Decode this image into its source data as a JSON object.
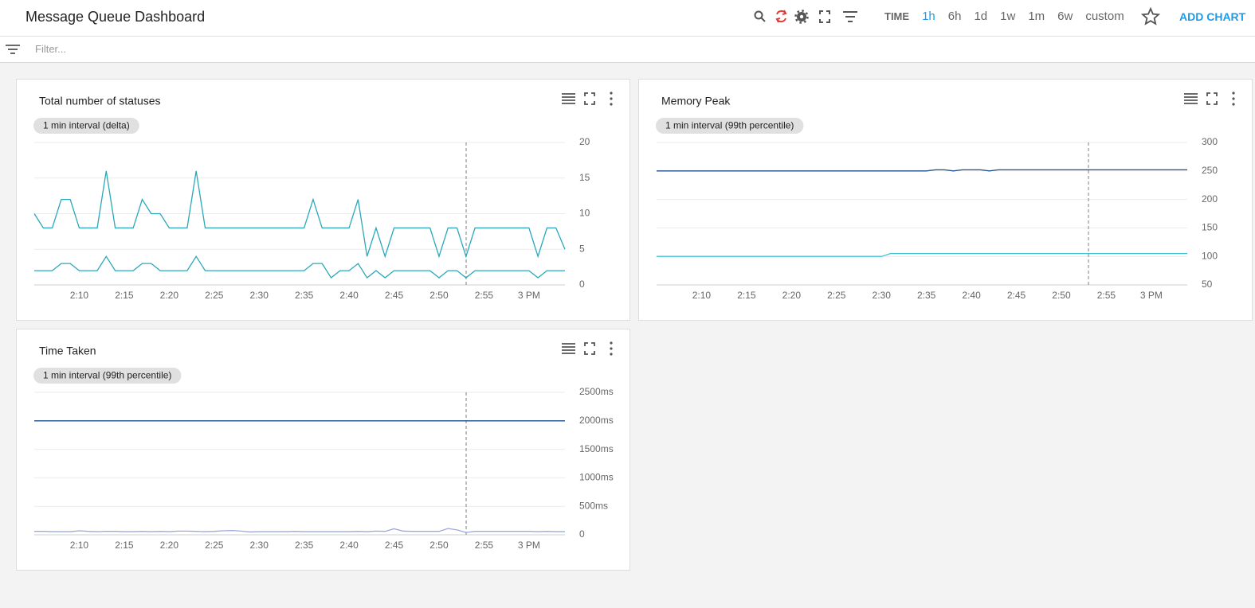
{
  "header": {
    "title": "Message Queue Dashboard",
    "time_label": "TIME",
    "time_options": [
      "1h",
      "6h",
      "1d",
      "1w",
      "1m",
      "6w",
      "custom"
    ],
    "selected_option": 0,
    "add_chart": "ADD CHART"
  },
  "filter": {
    "placeholder": "Filter..."
  },
  "chart_data": [
    {
      "type": "line",
      "title": "Total number of statuses",
      "subtitle": "1 min interval (delta)",
      "categories": [
        null,
        null,
        null,
        null,
        null,
        "2:10",
        null,
        null,
        null,
        null,
        "2:15",
        null,
        null,
        null,
        null,
        "2:20",
        null,
        null,
        null,
        null,
        "2:25",
        null,
        null,
        null,
        null,
        "2:30",
        null,
        null,
        null,
        null,
        "2:35",
        null,
        null,
        null,
        null,
        "2:40",
        null,
        null,
        null,
        null,
        "2:45",
        null,
        null,
        null,
        null,
        "2:50",
        null,
        null,
        null,
        null,
        "2:55",
        null,
        null,
        null,
        null,
        "3 PM",
        null,
        null,
        null,
        null
      ],
      "ylim": [
        0,
        20
      ],
      "yticks": [
        0,
        5,
        10,
        15,
        20
      ],
      "grid": true,
      "series": [
        {
          "color": "#29a8b8",
          "values": [
            10,
            8,
            8,
            12,
            12,
            8,
            8,
            8,
            16,
            8,
            8,
            8,
            12,
            10,
            10,
            8,
            8,
            8,
            16,
            8,
            8,
            8,
            8,
            8,
            8,
            8,
            8,
            8,
            8,
            8,
            8,
            12,
            8,
            8,
            8,
            8,
            12,
            4,
            8,
            4,
            8,
            8,
            8,
            8,
            8,
            4,
            8,
            8,
            4,
            8,
            8,
            8,
            8,
            8,
            8,
            8,
            4,
            8,
            8,
            5
          ]
        },
        {
          "color": "#29a8b8",
          "values": [
            2,
            2,
            2,
            3,
            3,
            2,
            2,
            2,
            4,
            2,
            2,
            2,
            3,
            3,
            2,
            2,
            2,
            2,
            4,
            2,
            2,
            2,
            2,
            2,
            2,
            2,
            2,
            2,
            2,
            2,
            2,
            3,
            3,
            1,
            2,
            2,
            3,
            1,
            2,
            1,
            2,
            2,
            2,
            2,
            2,
            1,
            2,
            2,
            1,
            2,
            2,
            2,
            2,
            2,
            2,
            2,
            1,
            2,
            2,
            2
          ]
        }
      ]
    },
    {
      "type": "line",
      "title": "Memory Peak",
      "subtitle": "1 min interval (99th percentile)",
      "categories": [
        null,
        null,
        null,
        null,
        null,
        "2:10",
        null,
        null,
        null,
        null,
        "2:15",
        null,
        null,
        null,
        null,
        "2:20",
        null,
        null,
        null,
        null,
        "2:25",
        null,
        null,
        null,
        null,
        "2:30",
        null,
        null,
        null,
        null,
        "2:35",
        null,
        null,
        null,
        null,
        "2:40",
        null,
        null,
        null,
        null,
        "2:45",
        null,
        null,
        null,
        null,
        "2:50",
        null,
        null,
        null,
        null,
        "2:55",
        null,
        null,
        null,
        null,
        "3 PM",
        null,
        null,
        null,
        null
      ],
      "ylim": [
        50,
        300
      ],
      "yticks": [
        50,
        100,
        150,
        200,
        250,
        300
      ],
      "grid": true,
      "series": [
        {
          "color": "#1f4e8c",
          "values": [
            250,
            250,
            250,
            250,
            250,
            250,
            250,
            250,
            250,
            250,
            250,
            250,
            250,
            250,
            250,
            250,
            250,
            250,
            250,
            250,
            250,
            250,
            250,
            250,
            250,
            250,
            250,
            250,
            250,
            250,
            250,
            252,
            252,
            250,
            252,
            252,
            252,
            250,
            252,
            252,
            252,
            252,
            252,
            252,
            252,
            252,
            252,
            252,
            252,
            252,
            252,
            252,
            252,
            252,
            252,
            252,
            252,
            252,
            252,
            252
          ]
        },
        {
          "color": "#40c4d4",
          "values": [
            100,
            100,
            100,
            100,
            100,
            100,
            100,
            100,
            100,
            100,
            100,
            100,
            100,
            100,
            100,
            100,
            100,
            100,
            100,
            100,
            100,
            100,
            100,
            100,
            100,
            100,
            105,
            105,
            105,
            105,
            105,
            105,
            105,
            105,
            105,
            105,
            105,
            105,
            105,
            105,
            105,
            105,
            105,
            105,
            105,
            105,
            105,
            105,
            105,
            105,
            105,
            105,
            105,
            105,
            105,
            105,
            105,
            105,
            105,
            105
          ]
        }
      ]
    },
    {
      "type": "line",
      "title": "Time Taken",
      "subtitle": "1 min interval (99th percentile)",
      "categories": [
        null,
        null,
        null,
        null,
        null,
        "2:10",
        null,
        null,
        null,
        null,
        "2:15",
        null,
        null,
        null,
        null,
        "2:20",
        null,
        null,
        null,
        null,
        "2:25",
        null,
        null,
        null,
        null,
        "2:30",
        null,
        null,
        null,
        null,
        "2:35",
        null,
        null,
        null,
        null,
        "2:40",
        null,
        null,
        null,
        null,
        "2:45",
        null,
        null,
        null,
        null,
        "2:50",
        null,
        null,
        null,
        null,
        "2:55",
        null,
        null,
        null,
        null,
        "3 PM",
        null,
        null,
        null,
        null
      ],
      "ylim": [
        0,
        2500
      ],
      "yticks": [
        0,
        {
          "value": 500,
          "label": "500ms"
        },
        {
          "value": 1000,
          "label": "1000ms"
        },
        {
          "value": 1500,
          "label": "1500ms"
        },
        {
          "value": 2000,
          "label": "2000ms"
        },
        {
          "value": 2500,
          "label": "2500ms"
        }
      ],
      "grid": true,
      "series": [
        {
          "color": "#1f4e8c",
          "values": [
            2000,
            2000,
            2000,
            2000,
            2000,
            2000,
            2000,
            2000,
            2000,
            2000,
            2000,
            2000,
            2000,
            2000,
            2000,
            2000,
            2000,
            2000,
            2000,
            2000,
            2000,
            2000,
            2000,
            2000,
            2000,
            2000,
            2000,
            2000,
            2000,
            2000,
            2000,
            2000,
            2000,
            2000,
            2000,
            2000,
            2000,
            2000,
            2000,
            2000,
            2000,
            2000,
            2000,
            2000,
            2000,
            2000,
            2000,
            2000,
            2000,
            2000,
            2000,
            2000,
            2000,
            2000,
            2000,
            2000,
            2000,
            2000,
            2000,
            2000
          ]
        },
        {
          "color": "#9aa9dc",
          "values": [
            60,
            60,
            55,
            55,
            55,
            70,
            60,
            55,
            60,
            60,
            55,
            55,
            60,
            55,
            60,
            55,
            65,
            65,
            60,
            55,
            60,
            70,
            75,
            65,
            50,
            55,
            55,
            55,
            55,
            60,
            55,
            55,
            55,
            55,
            55,
            55,
            60,
            55,
            65,
            60,
            105,
            65,
            60,
            60,
            60,
            60,
            110,
            85,
            40,
            60,
            60,
            60,
            60,
            60,
            60,
            60,
            55,
            60,
            55,
            55
          ]
        }
      ]
    }
  ]
}
